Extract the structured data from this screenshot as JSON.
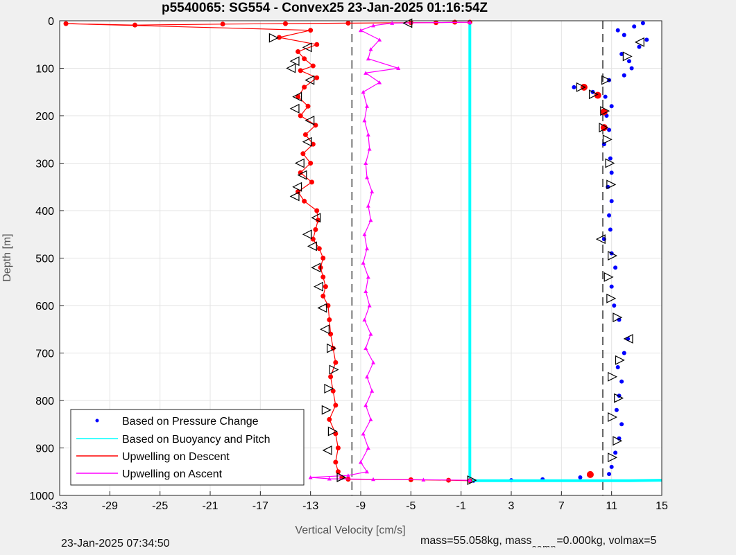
{
  "chart_data": {
    "type": "scatter",
    "title": "p5540065: SG554 - Convex25 23-Jan-2025 01:16:54Z",
    "xlabel": "Vertical Velocity [cm/s]",
    "ylabel": "Depth [m]",
    "xlim": [
      -33,
      15
    ],
    "ylim": [
      0,
      1000
    ],
    "y_reversed": true,
    "grid": true,
    "xticks": [
      -33,
      -29,
      -25,
      -21,
      -17,
      -13,
      -9,
      -5,
      -1,
      3,
      7,
      11,
      15
    ],
    "yticks": [
      0,
      100,
      200,
      300,
      400,
      500,
      600,
      700,
      800,
      900,
      1000
    ],
    "legend_position": "bottom-left",
    "reference_lines_x": [
      -9.7,
      10.3
    ],
    "series": [
      {
        "name": "Based on Pressure Change",
        "color": "#0000ff",
        "marker": "dot",
        "points": [
          [
            13.5,
            5
          ],
          [
            12.8,
            12
          ],
          [
            11.5,
            20
          ],
          [
            12.0,
            30
          ],
          [
            13.8,
            40
          ],
          [
            13.2,
            55
          ],
          [
            11.8,
            70
          ],
          [
            12.4,
            85
          ],
          [
            12.6,
            100
          ],
          [
            12.0,
            115
          ],
          [
            10.8,
            125
          ],
          [
            8.0,
            140
          ],
          [
            9.5,
            150
          ],
          [
            10.5,
            160
          ],
          [
            11.0,
            180
          ],
          [
            10.6,
            200
          ],
          [
            10.8,
            230
          ],
          [
            10.4,
            260
          ],
          [
            10.9,
            290
          ],
          [
            11.0,
            320
          ],
          [
            10.7,
            350
          ],
          [
            11.0,
            380
          ],
          [
            10.8,
            410
          ],
          [
            10.9,
            440
          ],
          [
            10.4,
            460
          ],
          [
            11.0,
            490
          ],
          [
            11.3,
            520
          ],
          [
            11.0,
            560
          ],
          [
            11.2,
            600
          ],
          [
            11.6,
            630
          ],
          [
            12.3,
            670
          ],
          [
            12.0,
            700
          ],
          [
            11.5,
            730
          ],
          [
            11.8,
            760
          ],
          [
            11.6,
            790
          ],
          [
            11.4,
            820
          ],
          [
            11.8,
            850
          ],
          [
            11.6,
            880
          ],
          [
            11.3,
            910
          ],
          [
            11.0,
            940
          ],
          [
            10.8,
            955
          ],
          [
            8.5,
            962
          ],
          [
            5.5,
            966
          ],
          [
            3.0,
            968
          ],
          [
            0.0,
            969
          ]
        ]
      },
      {
        "name": "Based on Buoyancy and Pitch",
        "color": "#00ffff",
        "marker": "line",
        "points": [
          [
            -0.3,
            0
          ],
          [
            -0.3,
            200
          ],
          [
            -0.3,
            400
          ],
          [
            -0.3,
            600
          ],
          [
            -0.3,
            800
          ],
          [
            -0.3,
            969
          ],
          [
            3.0,
            969
          ],
          [
            8.0,
            969
          ],
          [
            12.4,
            969
          ],
          [
            15.0,
            968
          ]
        ]
      },
      {
        "name": "Upwelling on Descent",
        "color": "#ff0000",
        "marker": "circle-line",
        "points": [
          [
            -0.3,
            3
          ],
          [
            -1.5,
            3
          ],
          [
            -3.0,
            4
          ],
          [
            -5.0,
            4
          ],
          [
            -10.0,
            5
          ],
          [
            -15.0,
            6
          ],
          [
            -20.0,
            7
          ],
          [
            -27.0,
            9
          ],
          [
            -32.5,
            6
          ],
          [
            -13.0,
            20
          ],
          [
            -15.5,
            35
          ],
          [
            -12.5,
            50
          ],
          [
            -14.0,
            65
          ],
          [
            -13.5,
            80
          ],
          [
            -12.8,
            95
          ],
          [
            -13.8,
            105
          ],
          [
            -12.5,
            120
          ],
          [
            -13.5,
            140
          ],
          [
            -14.0,
            160
          ],
          [
            -13.2,
            180
          ],
          [
            -13.8,
            200
          ],
          [
            -12.6,
            220
          ],
          [
            -13.4,
            240
          ],
          [
            -12.8,
            260
          ],
          [
            -13.6,
            280
          ],
          [
            -13.0,
            300
          ],
          [
            -13.8,
            320
          ],
          [
            -12.9,
            340
          ],
          [
            -14.0,
            360
          ],
          [
            -13.5,
            380
          ],
          [
            -12.5,
            400
          ],
          [
            -12.4,
            420
          ],
          [
            -12.6,
            440
          ],
          [
            -12.8,
            460
          ],
          [
            -12.3,
            480
          ],
          [
            -12.0,
            500
          ],
          [
            -12.2,
            520
          ],
          [
            -12.0,
            540
          ],
          [
            -11.8,
            560
          ],
          [
            -12.0,
            580
          ],
          [
            -11.6,
            600
          ],
          [
            -11.5,
            630
          ],
          [
            -11.4,
            660
          ],
          [
            -11.2,
            690
          ],
          [
            -11.0,
            720
          ],
          [
            -11.4,
            750
          ],
          [
            -11.2,
            780
          ],
          [
            -11.0,
            810
          ],
          [
            -11.5,
            840
          ],
          [
            -11.0,
            870
          ],
          [
            -10.8,
            900
          ],
          [
            -11.0,
            930
          ],
          [
            -10.8,
            950
          ],
          [
            -10.5,
            962
          ],
          [
            -10.0,
            966
          ],
          [
            -5.0,
            967
          ],
          [
            -2.0,
            968
          ],
          [
            -0.3,
            969
          ]
        ]
      },
      {
        "name": "Upwelling on Ascent",
        "color": "#ff00ff",
        "marker": "triangle-line",
        "points": [
          [
            -0.3,
            968
          ],
          [
            -4.0,
            967
          ],
          [
            -8.0,
            966
          ],
          [
            -11.5,
            965
          ],
          [
            -13.0,
            962
          ],
          [
            -10.0,
            958
          ],
          [
            -8.5,
            950
          ],
          [
            -9.0,
            930
          ],
          [
            -8.4,
            900
          ],
          [
            -8.8,
            870
          ],
          [
            -8.2,
            840
          ],
          [
            -8.6,
            810
          ],
          [
            -8.1,
            780
          ],
          [
            -8.5,
            750
          ],
          [
            -8.0,
            720
          ],
          [
            -8.6,
            690
          ],
          [
            -8.2,
            660
          ],
          [
            -8.7,
            630
          ],
          [
            -8.3,
            600
          ],
          [
            -8.6,
            570
          ],
          [
            -8.4,
            540
          ],
          [
            -8.8,
            510
          ],
          [
            -8.5,
            480
          ],
          [
            -8.7,
            450
          ],
          [
            -8.2,
            420
          ],
          [
            -8.4,
            390
          ],
          [
            -8.1,
            360
          ],
          [
            -8.5,
            330
          ],
          [
            -8.6,
            300
          ],
          [
            -8.3,
            270
          ],
          [
            -8.4,
            240
          ],
          [
            -8.7,
            210
          ],
          [
            -8.5,
            180
          ],
          [
            -8.8,
            150
          ],
          [
            -7.5,
            130
          ],
          [
            -8.6,
            110
          ],
          [
            -6.0,
            100
          ],
          [
            -8.4,
            80
          ],
          [
            -8.2,
            60
          ],
          [
            -7.5,
            40
          ],
          [
            -9.0,
            20
          ],
          [
            -8.0,
            10
          ],
          [
            -6.5,
            5
          ],
          [
            -0.3,
            3
          ]
        ]
      }
    ],
    "vehicle_markers": [
      {
        "x": -5.2,
        "y": 5,
        "dir": "left"
      },
      {
        "x": -16.0,
        "y": 36,
        "dir": "right"
      },
      {
        "x": -13.2,
        "y": 56,
        "dir": "left"
      },
      {
        "x": -14.2,
        "y": 85,
        "dir": "left"
      },
      {
        "x": -14.5,
        "y": 100,
        "dir": "left"
      },
      {
        "x": -13.0,
        "y": 125,
        "dir": "left"
      },
      {
        "x": -14.0,
        "y": 160,
        "dir": "left"
      },
      {
        "x": -14.2,
        "y": 185,
        "dir": "left"
      },
      {
        "x": -13.0,
        "y": 210,
        "dir": "left"
      },
      {
        "x": -13.2,
        "y": 255,
        "dir": "left"
      },
      {
        "x": -13.8,
        "y": 300,
        "dir": "left"
      },
      {
        "x": -13.6,
        "y": 325,
        "dir": "left"
      },
      {
        "x": -14.0,
        "y": 350,
        "dir": "left"
      },
      {
        "x": -14.2,
        "y": 370,
        "dir": "left"
      },
      {
        "x": -12.5,
        "y": 415,
        "dir": "left"
      },
      {
        "x": -13.2,
        "y": 450,
        "dir": "left"
      },
      {
        "x": -12.8,
        "y": 475,
        "dir": "left"
      },
      {
        "x": -12.5,
        "y": 520,
        "dir": "left"
      },
      {
        "x": -12.3,
        "y": 560,
        "dir": "left"
      },
      {
        "x": -12.0,
        "y": 605,
        "dir": "left"
      },
      {
        "x": -11.8,
        "y": 650,
        "dir": "left"
      },
      {
        "x": -11.4,
        "y": 690,
        "dir": "right"
      },
      {
        "x": -11.2,
        "y": 735,
        "dir": "right"
      },
      {
        "x": -11.6,
        "y": 775,
        "dir": "right"
      },
      {
        "x": -11.8,
        "y": 820,
        "dir": "right"
      },
      {
        "x": -11.3,
        "y": 865,
        "dir": "right"
      },
      {
        "x": -11.6,
        "y": 905,
        "dir": "left"
      },
      {
        "x": -10.6,
        "y": 962,
        "dir": "right"
      },
      {
        "x": 13.3,
        "y": 45,
        "dir": "left"
      },
      {
        "x": 12.2,
        "y": 75,
        "dir": "right"
      },
      {
        "x": 10.5,
        "y": 125,
        "dir": "right"
      },
      {
        "x": 8.5,
        "y": 140,
        "dir": "right"
      },
      {
        "x": 9.5,
        "y": 155,
        "dir": "right"
      },
      {
        "x": 10.4,
        "y": 190,
        "dir": "right"
      },
      {
        "x": 10.3,
        "y": 225,
        "dir": "right"
      },
      {
        "x": 10.6,
        "y": 250,
        "dir": "right"
      },
      {
        "x": 10.8,
        "y": 300,
        "dir": "right"
      },
      {
        "x": 10.9,
        "y": 345,
        "dir": "right"
      },
      {
        "x": 10.2,
        "y": 460,
        "dir": "left"
      },
      {
        "x": 11.0,
        "y": 495,
        "dir": "right"
      },
      {
        "x": 10.7,
        "y": 540,
        "dir": "right"
      },
      {
        "x": 10.9,
        "y": 585,
        "dir": "right"
      },
      {
        "x": 11.4,
        "y": 625,
        "dir": "right"
      },
      {
        "x": 12.4,
        "y": 670,
        "dir": "left"
      },
      {
        "x": 11.6,
        "y": 715,
        "dir": "right"
      },
      {
        "x": 11.0,
        "y": 750,
        "dir": "right"
      },
      {
        "x": 11.5,
        "y": 795,
        "dir": "right"
      },
      {
        "x": 11.0,
        "y": 835,
        "dir": "right"
      },
      {
        "x": 11.4,
        "y": 885,
        "dir": "right"
      },
      {
        "x": 11.0,
        "y": 920,
        "dir": "right"
      },
      {
        "x": -0.2,
        "y": 968,
        "dir": "right"
      }
    ],
    "highlight_points": [
      {
        "x": 8.8,
        "y": 140,
        "color": "#ff0000"
      },
      {
        "x": 9.9,
        "y": 157,
        "color": "#ff0000"
      },
      {
        "x": 10.4,
        "y": 192,
        "color": "#ff0000"
      },
      {
        "x": 10.4,
        "y": 225,
        "color": "#ff0000"
      },
      {
        "x": 9.3,
        "y": 956,
        "color": "#ff0000"
      }
    ]
  },
  "footer": {
    "timestamp": "23-Jan-2025 07:34:50",
    "mass_text": "mass=55.058kg, mass",
    "mass_sub": "comp",
    "mass_tail": "=0.000kg, volmax=5"
  }
}
